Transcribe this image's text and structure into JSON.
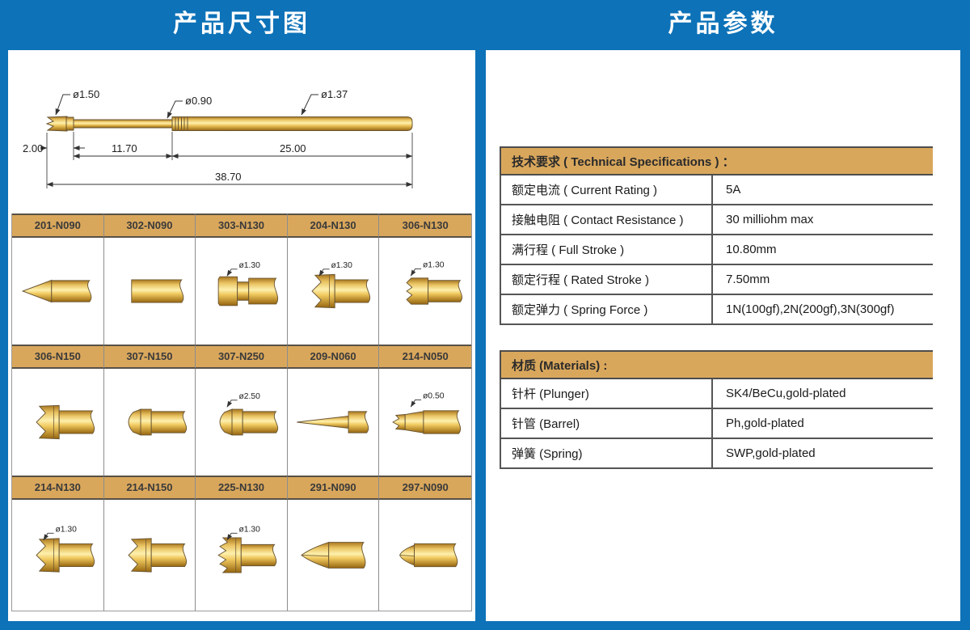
{
  "colors": {
    "background_blue": "#0d72b8",
    "panel_white": "#ffffff",
    "header_tan": "#d9a75c",
    "gold_dark": "#96650f",
    "gold_light": "#fdf0ad",
    "line_dark": "#4c4c4c"
  },
  "banners": {
    "left_title": "产品尺寸图",
    "right_title": "产品参数"
  },
  "drawing": {
    "dia_labels": {
      "tip": "ø1.50",
      "plunger": "ø0.90",
      "barrel": "ø1.37"
    },
    "dims": {
      "tip_len": "2.00",
      "plunger_len": "11.70",
      "barrel_len": "25.00",
      "total_len": "38.70"
    }
  },
  "grid": {
    "rows": [
      [
        {
          "model": "201-N090",
          "dia": "",
          "shape": "cone"
        },
        {
          "model": "302-N090",
          "dia": "",
          "shape": "flat"
        },
        {
          "model": "303-N130",
          "dia": "ø1.30",
          "shape": "step"
        },
        {
          "model": "204-N130",
          "dia": "ø1.30",
          "shape": "crown-large"
        },
        {
          "model": "306-N130",
          "dia": "ø1.30",
          "shape": "crown-small"
        }
      ],
      [
        {
          "model": "306-N150",
          "dia": "",
          "shape": "crown-large"
        },
        {
          "model": "307-N150",
          "dia": "",
          "shape": "cone-head"
        },
        {
          "model": "307-N250",
          "dia": "ø2.50",
          "shape": "cone-head"
        },
        {
          "model": "209-N060",
          "dia": "",
          "shape": "needle"
        },
        {
          "model": "214-N050",
          "dia": "ø0.50",
          "shape": "crown-tiny"
        }
      ],
      [
        {
          "model": "214-N130",
          "dia": "ø1.30",
          "shape": "crown-large"
        },
        {
          "model": "214-N150",
          "dia": "",
          "shape": "crown-large"
        },
        {
          "model": "225-N130",
          "dia": "ø1.30",
          "shape": "crown-multi"
        },
        {
          "model": "291-N090",
          "dia": "",
          "shape": "spear"
        },
        {
          "model": "297-N090",
          "dia": "",
          "shape": "spear-short"
        }
      ]
    ]
  },
  "specs": {
    "title": "技术要求 ( Technical Specifications ) ：",
    "rows": [
      {
        "label": "额定电流 ( Current Rating )",
        "value": "5A"
      },
      {
        "label": "接触电阻 ( Contact Resistance )",
        "value": "30 milliohm max"
      },
      {
        "label": "满行程 ( Full Stroke )",
        "value": "10.80mm"
      },
      {
        "label": "额定行程 ( Rated Stroke )",
        "value": "7.50mm"
      },
      {
        "label": "额定弹力 ( Spring Force )",
        "value": "1N(100gf),2N(200gf),3N(300gf)"
      }
    ]
  },
  "materials": {
    "title": "材质 (Materials) :",
    "rows": [
      {
        "label": "针杆 (Plunger)",
        "value": "SK4/BeCu,gold-plated"
      },
      {
        "label": "针管 (Barrel)",
        "value": "Ph,gold-plated"
      },
      {
        "label": "弹簧 (Spring)",
        "value": "SWP,gold-plated"
      }
    ]
  }
}
